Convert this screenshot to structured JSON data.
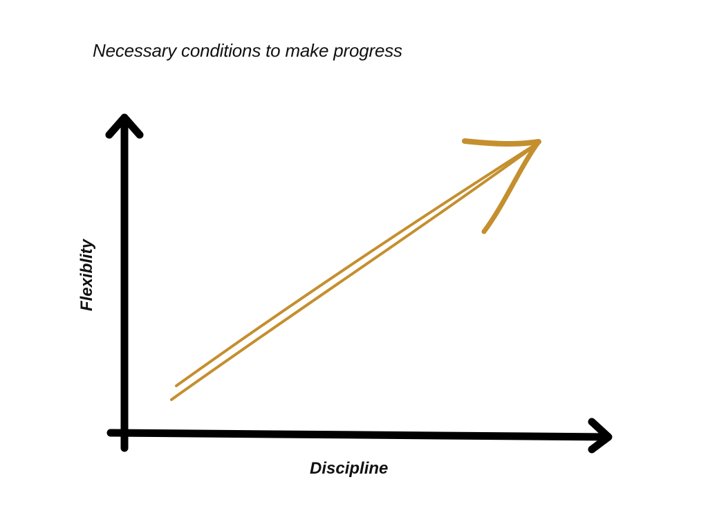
{
  "diagram": {
    "title": "Necessary conditions to make progress",
    "x_axis_label": "Discipline",
    "y_axis_label": "Flexiblity"
  },
  "colors": {
    "axis": "#000000",
    "arrow": "#C48F2E",
    "text": "#111111",
    "background": "#ffffff"
  }
}
